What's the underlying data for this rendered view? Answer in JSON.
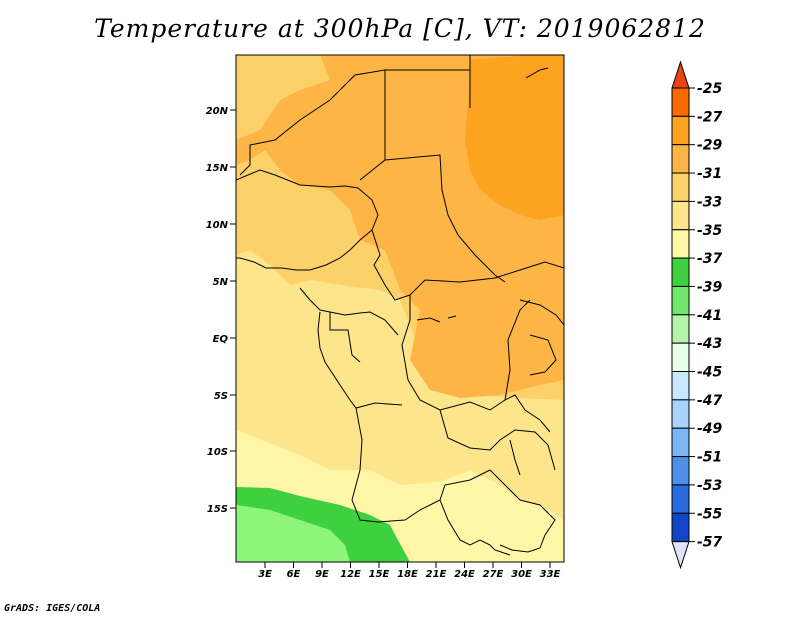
{
  "title": "Temperature at 300hPa [C], VT: 2019062812",
  "credit": "GrADS: IGES/COLA",
  "map": {
    "lat_labels": [
      "20N",
      "15N",
      "10N",
      "5N",
      "EQ",
      "5S",
      "10S",
      "15S"
    ],
    "lon_labels": [
      "3E",
      "6E",
      "9E",
      "12E",
      "15E",
      "18E",
      "21E",
      "24E",
      "27E",
      "30E",
      "33E"
    ],
    "fill_colors": {
      "cool_fringe": "#8ef57b",
      "southern_band": "#3fd03f",
      "pale": "#fff6a8",
      "light": "#fde58c",
      "mid": "#fdd16a",
      "warm": "#fdb646",
      "hot": "#fca320"
    }
  },
  "legend": {
    "labels": [
      "-25",
      "-27",
      "-29",
      "-31",
      "-33",
      "-35",
      "-37",
      "-39",
      "-41",
      "-43",
      "-45",
      "-47",
      "-49",
      "-51",
      "-53",
      "-55",
      "-57"
    ],
    "top_arrow_color": "#ea4313",
    "bottom_arrow_color": "#e1e1f8",
    "colors": [
      "#f96a00",
      "#fca320",
      "#fdb646",
      "#fdd16a",
      "#fde58c",
      "#fff6a8",
      "#3fd03f",
      "#6de86d",
      "#b4f4a8",
      "#e8ffe8",
      "#c8e8ff",
      "#a8d4fb",
      "#7ab6f4",
      "#4f8fe8",
      "#2a6ae0",
      "#1246c8",
      "#0a1a7a"
    ]
  }
}
